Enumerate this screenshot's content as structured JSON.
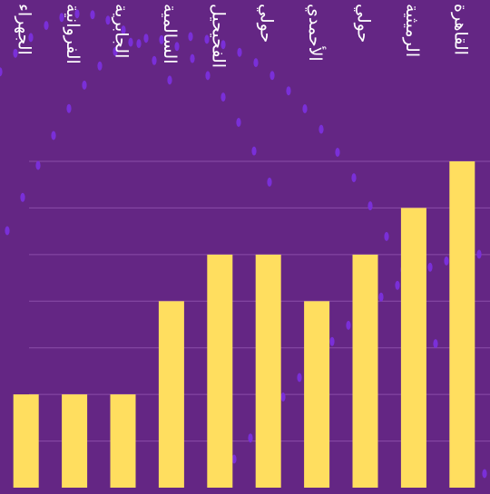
{
  "chart_data": {
    "type": "bar",
    "categories": [
      "الجهراء",
      "الفروانية",
      "الجابرية",
      "السالمية",
      "الفحيحيل",
      "حولي",
      "الأحمدي",
      "حولي",
      "الرميثية",
      "القاهرة"
    ],
    "values": [
      2,
      2,
      2,
      4,
      5,
      5,
      4,
      5,
      6,
      7
    ],
    "ylim": [
      0,
      7
    ],
    "grid": true,
    "legend": false,
    "colors": {
      "background": "#642684",
      "bar": "#FFDE5F",
      "grid": "#8A4EA8",
      "dots": "#7A2FD8",
      "label": "#FFFFFF"
    }
  }
}
